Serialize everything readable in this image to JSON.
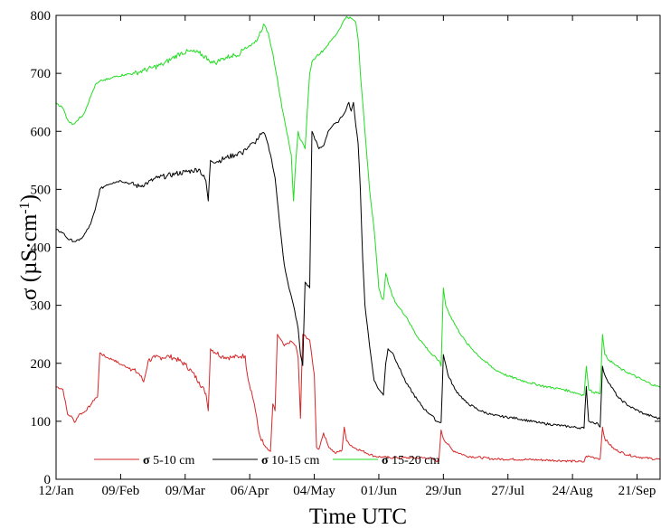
{
  "chart_data": {
    "type": "line",
    "title": "",
    "xlabel": "Time UTC",
    "ylabel_symbol": "σ",
    "ylabel_units_pre": " (µS·cm",
    "ylabel_units_sup": "-1",
    "ylabel_units_post": ")",
    "x_range_days": [
      0,
      262
    ],
    "ylim": [
      0,
      800
    ],
    "y_ticks": [
      0,
      100,
      200,
      300,
      400,
      500,
      600,
      700,
      800
    ],
    "x_ticks": [
      {
        "day": 0,
        "label": "12/Jan"
      },
      {
        "day": 28,
        "label": "09/Feb"
      },
      {
        "day": 56,
        "label": "09/Mar"
      },
      {
        "day": 84,
        "label": "06/Apr"
      },
      {
        "day": 112,
        "label": "04/May"
      },
      {
        "day": 140,
        "label": "01/Jun"
      },
      {
        "day": 168,
        "label": "29/Jun"
      },
      {
        "day": 196,
        "label": "27/Jul"
      },
      {
        "day": 224,
        "label": "24/Aug"
      },
      {
        "day": 252,
        "label": "21/Sep"
      }
    ],
    "grid": false,
    "legend_position": "bottom-left",
    "series": [
      {
        "name": "5-10 cm",
        "legend_symbol": "σ",
        "color": "#d62728",
        "points": [
          [
            0,
            160
          ],
          [
            3,
            155
          ],
          [
            5,
            112
          ],
          [
            7,
            107
          ],
          [
            8,
            98
          ],
          [
            10,
            112
          ],
          [
            12,
            115
          ],
          [
            15,
            128
          ],
          [
            17,
            140
          ],
          [
            18,
            142
          ],
          [
            19,
            218
          ],
          [
            22,
            210
          ],
          [
            25,
            206
          ],
          [
            28,
            198
          ],
          [
            32,
            192
          ],
          [
            36,
            182
          ],
          [
            38,
            168
          ],
          [
            40,
            205
          ],
          [
            43,
            210
          ],
          [
            46,
            210
          ],
          [
            49,
            212
          ],
          [
            52,
            208
          ],
          [
            56,
            198
          ],
          [
            59,
            185
          ],
          [
            62,
            168
          ],
          [
            65,
            148
          ],
          [
            66,
            118
          ],
          [
            67,
            225
          ],
          [
            72,
            212
          ],
          [
            76,
            210
          ],
          [
            80,
            212
          ],
          [
            82,
            213
          ],
          [
            83,
            180
          ],
          [
            86,
            130
          ],
          [
            88,
            80
          ],
          [
            90,
            60
          ],
          [
            92,
            50
          ],
          [
            93,
            48
          ],
          [
            94,
            130
          ],
          [
            95,
            118
          ],
          [
            96,
            250
          ],
          [
            99,
            230
          ],
          [
            102,
            238
          ],
          [
            104,
            230
          ],
          [
            105,
            210
          ],
          [
            106,
            105
          ],
          [
            107,
            250
          ],
          [
            110,
            240
          ],
          [
            112,
            180
          ],
          [
            113,
            55
          ],
          [
            114,
            52
          ],
          [
            116,
            80
          ],
          [
            118,
            58
          ],
          [
            121,
            45
          ],
          [
            124,
            50
          ],
          [
            125,
            90
          ],
          [
            126,
            66
          ],
          [
            129,
            55
          ],
          [
            132,
            50
          ],
          [
            138,
            40
          ],
          [
            142,
            38
          ],
          [
            148,
            37
          ],
          [
            154,
            37
          ],
          [
            162,
            37
          ],
          [
            166,
            30
          ],
          [
            167,
            85
          ],
          [
            168,
            70
          ],
          [
            172,
            50
          ],
          [
            178,
            40
          ],
          [
            190,
            35
          ],
          [
            205,
            34
          ],
          [
            220,
            32
          ],
          [
            229,
            30
          ],
          [
            230,
            40
          ],
          [
            233,
            38
          ],
          [
            235,
            36
          ],
          [
            236,
            35
          ],
          [
            237,
            90
          ],
          [
            238,
            70
          ],
          [
            242,
            52
          ],
          [
            248,
            42
          ],
          [
            255,
            37
          ],
          [
            262,
            34
          ]
        ]
      },
      {
        "name": "10-15 cm",
        "legend_symbol": "σ",
        "color": "#000000",
        "points": [
          [
            0,
            430
          ],
          [
            3,
            425
          ],
          [
            5,
            415
          ],
          [
            8,
            410
          ],
          [
            10,
            412
          ],
          [
            12,
            420
          ],
          [
            15,
            440
          ],
          [
            17,
            465
          ],
          [
            19,
            500
          ],
          [
            22,
            508
          ],
          [
            25,
            512
          ],
          [
            28,
            515
          ],
          [
            32,
            510
          ],
          [
            36,
            505
          ],
          [
            40,
            512
          ],
          [
            44,
            520
          ],
          [
            48,
            523
          ],
          [
            52,
            527
          ],
          [
            56,
            530
          ],
          [
            59,
            532
          ],
          [
            62,
            535
          ],
          [
            65,
            515
          ],
          [
            66,
            480
          ],
          [
            67,
            550
          ],
          [
            70,
            548
          ],
          [
            74,
            555
          ],
          [
            78,
            560
          ],
          [
            80,
            565
          ],
          [
            81,
            560
          ],
          [
            82,
            570
          ],
          [
            86,
            580
          ],
          [
            88,
            590
          ],
          [
            89,
            595
          ],
          [
            90,
            598
          ],
          [
            91,
            590
          ],
          [
            93,
            560
          ],
          [
            95,
            520
          ],
          [
            97,
            440
          ],
          [
            99,
            370
          ],
          [
            101,
            330
          ],
          [
            103,
            300
          ],
          [
            105,
            260
          ],
          [
            106,
            215
          ],
          [
            107,
            196
          ],
          [
            108,
            340
          ],
          [
            110,
            330
          ],
          [
            111,
            600
          ],
          [
            114,
            570
          ],
          [
            116,
            575
          ],
          [
            118,
            600
          ],
          [
            120,
            610
          ],
          [
            122,
            615
          ],
          [
            124,
            625
          ],
          [
            126,
            640
          ],
          [
            127,
            650
          ],
          [
            128,
            635
          ],
          [
            129,
            650
          ],
          [
            130,
            610
          ],
          [
            131,
            580
          ],
          [
            132,
            500
          ],
          [
            133,
            380
          ],
          [
            134,
            300
          ],
          [
            136,
            230
          ],
          [
            138,
            170
          ],
          [
            140,
            155
          ],
          [
            141,
            150
          ],
          [
            142,
            145
          ],
          [
            143,
            200
          ],
          [
            144,
            225
          ],
          [
            146,
            218
          ],
          [
            148,
            200
          ],
          [
            152,
            165
          ],
          [
            157,
            135
          ],
          [
            160,
            120
          ],
          [
            163,
            110
          ],
          [
            165,
            100
          ],
          [
            167,
            98
          ],
          [
            168,
            215
          ],
          [
            170,
            180
          ],
          [
            173,
            155
          ],
          [
            178,
            132
          ],
          [
            184,
            118
          ],
          [
            190,
            110
          ],
          [
            200,
            105
          ],
          [
            210,
            97
          ],
          [
            220,
            92
          ],
          [
            229,
            88
          ],
          [
            230,
            160
          ],
          [
            231,
            100
          ],
          [
            233,
            98
          ],
          [
            235,
            96
          ],
          [
            236,
            90
          ],
          [
            237,
            195
          ],
          [
            238,
            180
          ],
          [
            240,
            165
          ],
          [
            244,
            140
          ],
          [
            249,
            125
          ],
          [
            255,
            113
          ],
          [
            262,
            104
          ]
        ]
      },
      {
        "name": "15-20 cm",
        "legend_symbol": "σ",
        "color": "#22dd22",
        "points": [
          [
            0,
            650
          ],
          [
            3,
            640
          ],
          [
            5,
            620
          ],
          [
            7,
            612
          ],
          [
            9,
            618
          ],
          [
            12,
            630
          ],
          [
            15,
            660
          ],
          [
            17,
            680
          ],
          [
            20,
            688
          ],
          [
            23,
            690
          ],
          [
            26,
            695
          ],
          [
            30,
            698
          ],
          [
            34,
            700
          ],
          [
            38,
            705
          ],
          [
            42,
            710
          ],
          [
            46,
            715
          ],
          [
            50,
            725
          ],
          [
            54,
            735
          ],
          [
            58,
            738
          ],
          [
            62,
            735
          ],
          [
            66,
            725
          ],
          [
            68,
            718
          ],
          [
            70,
            720
          ],
          [
            72,
            725
          ],
          [
            76,
            730
          ],
          [
            80,
            735
          ],
          [
            82,
            745
          ],
          [
            84,
            748
          ],
          [
            86,
            752
          ],
          [
            88,
            765
          ],
          [
            90,
            785
          ],
          [
            92,
            770
          ],
          [
            94,
            735
          ],
          [
            96,
            690
          ],
          [
            98,
            640
          ],
          [
            100,
            600
          ],
          [
            102,
            560
          ],
          [
            103,
            480
          ],
          [
            104,
            550
          ],
          [
            105,
            600
          ],
          [
            106,
            585
          ],
          [
            107,
            580
          ],
          [
            108,
            570
          ],
          [
            110,
            700
          ],
          [
            111,
            720
          ],
          [
            113,
            730
          ],
          [
            116,
            740
          ],
          [
            119,
            755
          ],
          [
            122,
            770
          ],
          [
            124,
            785
          ],
          [
            126,
            798
          ],
          [
            128,
            795
          ],
          [
            130,
            788
          ],
          [
            131,
            760
          ],
          [
            132,
            700
          ],
          [
            134,
            600
          ],
          [
            136,
            500
          ],
          [
            138,
            430
          ],
          [
            139,
            380
          ],
          [
            140,
            330
          ],
          [
            141,
            315
          ],
          [
            142,
            310
          ],
          [
            143,
            355
          ],
          [
            144,
            340
          ],
          [
            146,
            315
          ],
          [
            148,
            300
          ],
          [
            152,
            280
          ],
          [
            156,
            250
          ],
          [
            160,
            230
          ],
          [
            163,
            215
          ],
          [
            166,
            205
          ],
          [
            167,
            195
          ],
          [
            168,
            330
          ],
          [
            169,
            300
          ],
          [
            171,
            282
          ],
          [
            174,
            260
          ],
          [
            178,
            235
          ],
          [
            184,
            210
          ],
          [
            190,
            190
          ],
          [
            196,
            178
          ],
          [
            204,
            168
          ],
          [
            212,
            160
          ],
          [
            220,
            155
          ],
          [
            229,
            145
          ],
          [
            230,
            195
          ],
          [
            231,
            155
          ],
          [
            233,
            150
          ],
          [
            235,
            150
          ],
          [
            236,
            148
          ],
          [
            237,
            250
          ],
          [
            238,
            215
          ],
          [
            240,
            205
          ],
          [
            245,
            190
          ],
          [
            250,
            180
          ],
          [
            256,
            168
          ],
          [
            262,
            158
          ]
        ]
      }
    ]
  }
}
